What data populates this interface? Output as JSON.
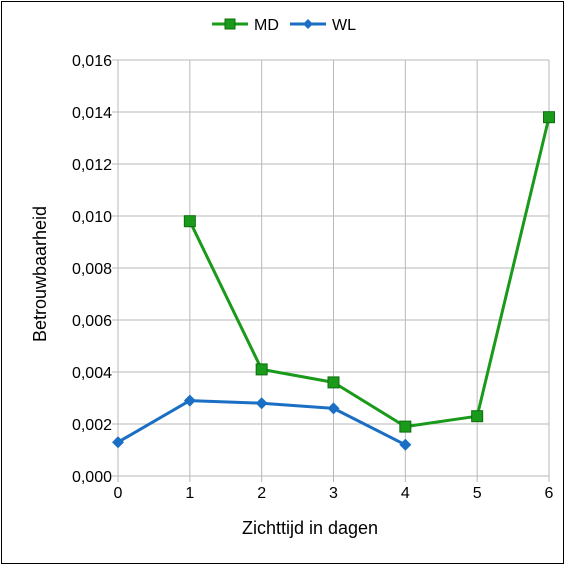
{
  "chart_data": {
    "type": "line",
    "title": "",
    "xlabel": "Zichttijd in dagen",
    "ylabel": "Betrouwbaarheid",
    "xlim": [
      0,
      6
    ],
    "ylim": [
      0,
      0.016
    ],
    "x_ticks": [
      "0",
      "1",
      "2",
      "3",
      "4",
      "5",
      "6"
    ],
    "y_ticks": [
      "0,000",
      "0,002",
      "0,004",
      "0,006",
      "0,008",
      "0,010",
      "0,012",
      "0,014",
      "0,016"
    ],
    "grid": true,
    "legend_position": "top-center",
    "series": [
      {
        "name": "MD",
        "color": "#1a9a1a",
        "marker": "square",
        "points": [
          [
            1,
            0.0098
          ],
          [
            2,
            0.0041
          ],
          [
            3,
            0.0036
          ],
          [
            4,
            0.0019
          ],
          [
            5,
            0.0023
          ],
          [
            6,
            0.0138
          ]
        ]
      },
      {
        "name": "WL",
        "color": "#1a6fc4",
        "marker": "diamond",
        "points": [
          [
            0,
            0.0013
          ],
          [
            1,
            0.0029
          ],
          [
            2,
            0.0028
          ],
          [
            3,
            0.0026
          ],
          [
            4,
            0.0012
          ]
        ]
      }
    ]
  }
}
